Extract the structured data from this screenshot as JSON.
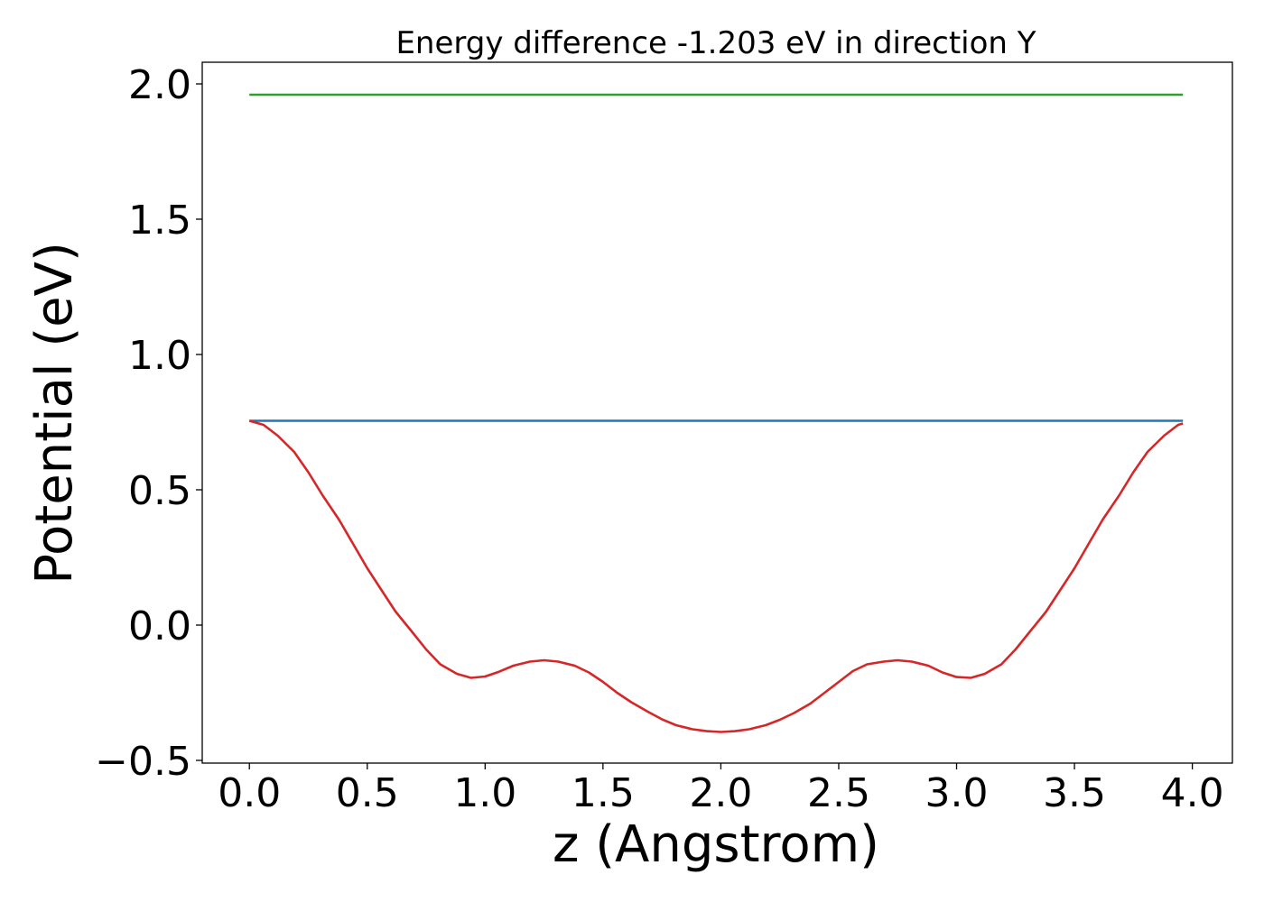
{
  "chart_data": {
    "type": "line",
    "title": "Energy difference -1.203 eV in direction Y",
    "xlabel": "z (Angstrom)",
    "ylabel": "Potential (eV)",
    "xlim": [
      -0.2,
      4.17
    ],
    "ylim": [
      -0.51,
      2.08
    ],
    "xticks": [
      0.0,
      0.5,
      1.0,
      1.5,
      2.0,
      2.5,
      3.0,
      3.5,
      4.0
    ],
    "xtick_labels": [
      "0.0",
      "0.5",
      "1.0",
      "1.5",
      "2.0",
      "2.5",
      "3.0",
      "3.5",
      "4.0"
    ],
    "yticks": [
      -0.5,
      0.0,
      0.5,
      1.0,
      1.5,
      2.0
    ],
    "ytick_labels": [
      "−0.5",
      "0.0",
      "0.5",
      "1.0",
      "1.5",
      "2.0"
    ],
    "grid": false,
    "series": [
      {
        "color": "#2ca02c",
        "x": [
          0.0,
          3.96
        ],
        "y": [
          1.96,
          1.96
        ]
      },
      {
        "color": "#1f77b4",
        "x": [
          0.0,
          3.96
        ],
        "y": [
          0.755,
          0.755
        ]
      },
      {
        "color": "#d62728",
        "x": [
          0.0,
          0.06,
          0.12,
          0.19,
          0.25,
          0.31,
          0.38,
          0.44,
          0.5,
          0.56,
          0.62,
          0.69,
          0.75,
          0.81,
          0.88,
          0.94,
          1.0,
          1.06,
          1.12,
          1.19,
          1.25,
          1.31,
          1.38,
          1.44,
          1.5,
          1.56,
          1.62,
          1.69,
          1.75,
          1.81,
          1.88,
          1.94,
          2.0,
          2.06,
          2.12,
          2.19,
          2.25,
          2.31,
          2.38,
          2.44,
          2.5,
          2.56,
          2.62,
          2.69,
          2.75,
          2.81,
          2.88,
          2.94,
          3.0,
          3.06,
          3.12,
          3.19,
          3.25,
          3.31,
          3.38,
          3.44,
          3.5,
          3.56,
          3.62,
          3.69,
          3.75,
          3.81,
          3.88,
          3.94,
          3.96
        ],
        "y": [
          0.755,
          0.74,
          0.7,
          0.64,
          0.565,
          0.48,
          0.39,
          0.3,
          0.21,
          0.13,
          0.05,
          -0.025,
          -0.09,
          -0.145,
          -0.18,
          -0.195,
          -0.19,
          -0.172,
          -0.15,
          -0.135,
          -0.13,
          -0.135,
          -0.15,
          -0.175,
          -0.21,
          -0.25,
          -0.285,
          -0.32,
          -0.348,
          -0.37,
          -0.385,
          -0.392,
          -0.395,
          -0.392,
          -0.385,
          -0.37,
          -0.35,
          -0.325,
          -0.29,
          -0.25,
          -0.21,
          -0.17,
          -0.145,
          -0.135,
          -0.13,
          -0.135,
          -0.15,
          -0.175,
          -0.192,
          -0.195,
          -0.18,
          -0.145,
          -0.09,
          -0.025,
          0.05,
          0.13,
          0.21,
          0.3,
          0.39,
          0.48,
          0.565,
          0.64,
          0.7,
          0.74,
          0.745
        ]
      }
    ]
  }
}
